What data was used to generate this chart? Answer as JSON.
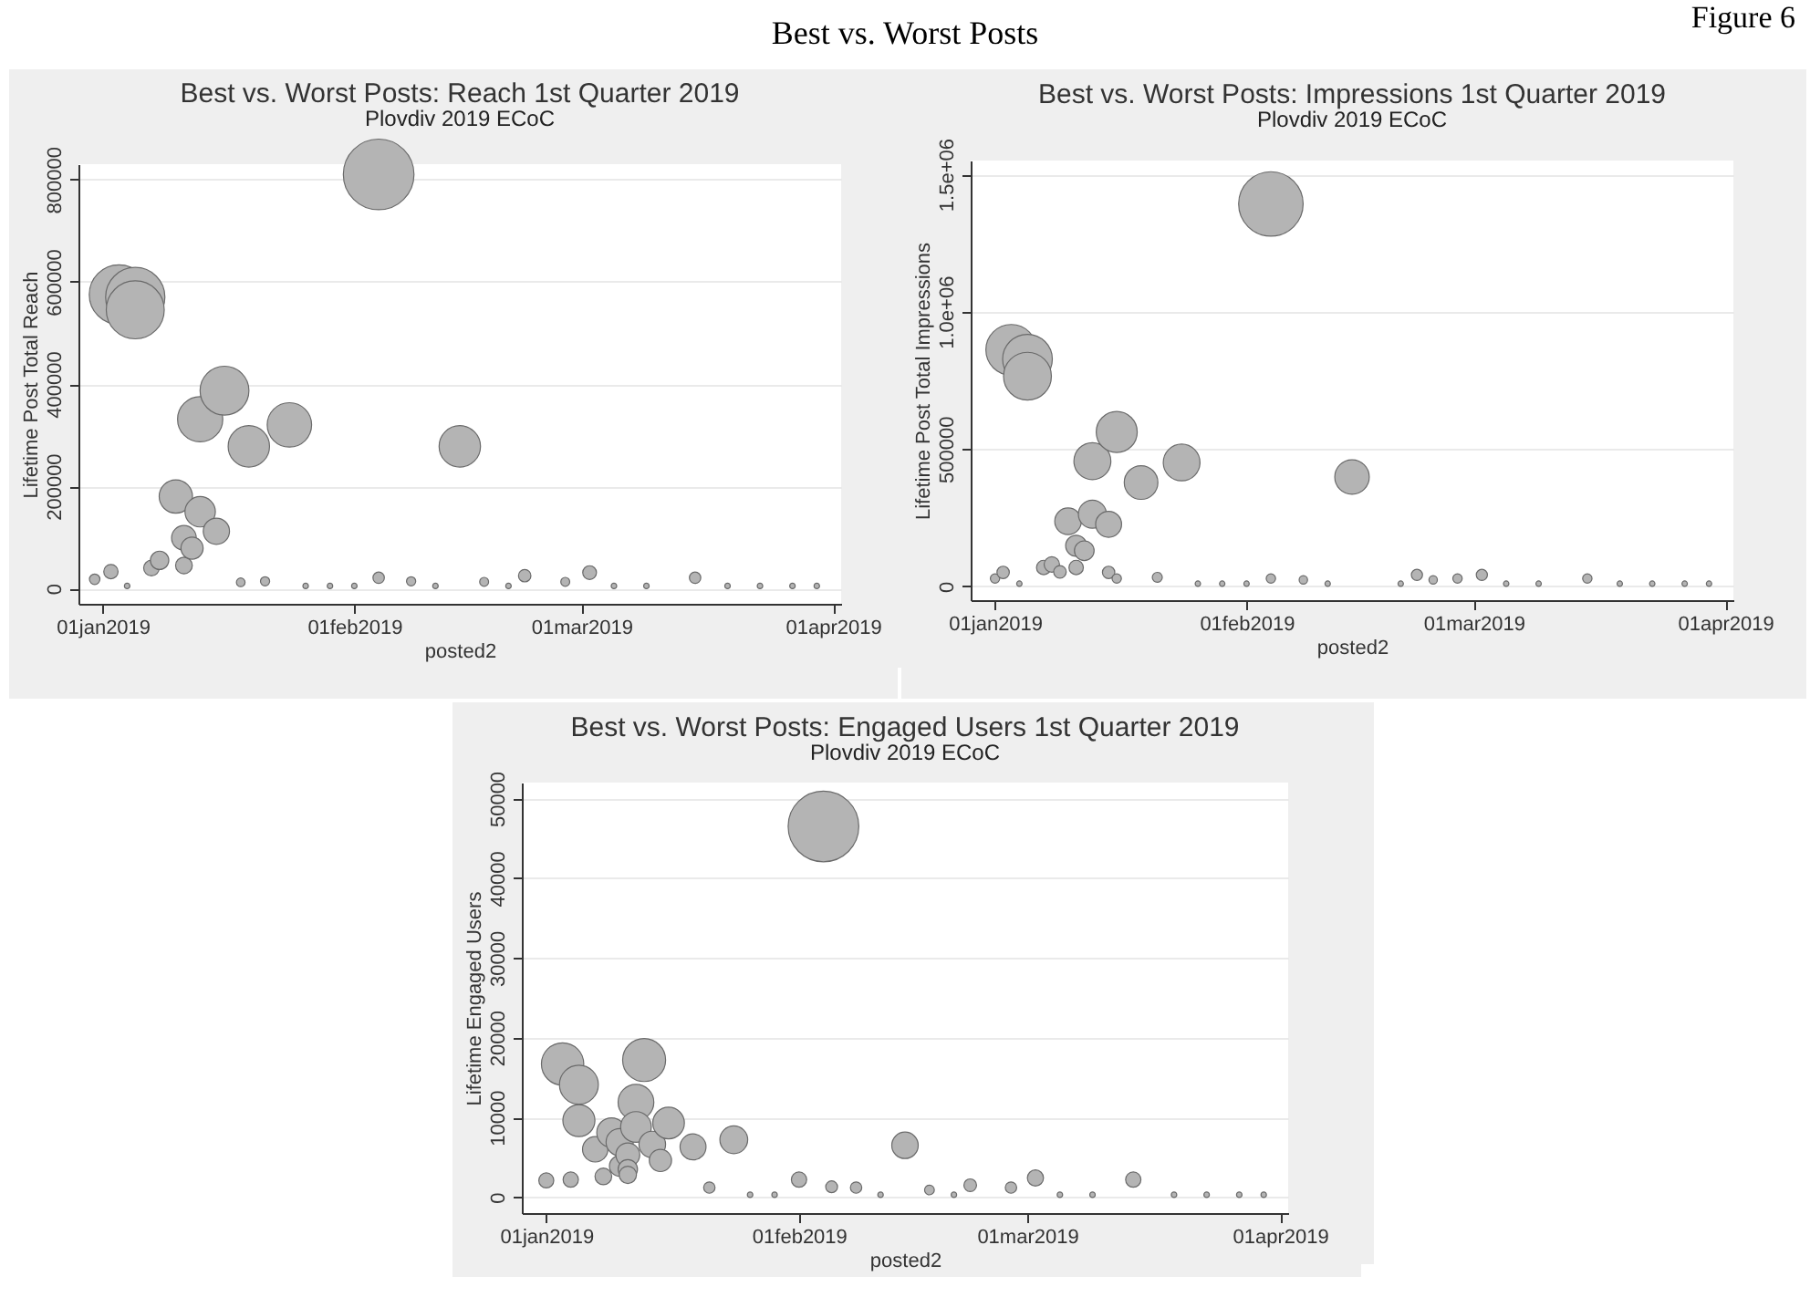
{
  "chart_data": [
    {
      "type": "bubble",
      "title": "Best vs. Worst Posts: Reach 1st Quarter 2019",
      "subtitle": "Plovdiv 2019 ECoC",
      "xlabel": "posted2",
      "ylabel": "Lifetime Post Total Reach",
      "annotations": [
        "Figure 6",
        "Best vs. Worst Posts"
      ],
      "x": [
        "2018-12-31",
        "2019-01-02",
        "2019-01-03",
        "2019-01-05",
        "2019-01-05",
        "2019-01-07",
        "2019-01-08",
        "2019-01-10",
        "2019-01-11",
        "2019-01-11",
        "2019-01-12",
        "2019-01-13",
        "2019-01-13",
        "2019-01-15",
        "2019-01-16",
        "2019-01-18",
        "2019-01-19",
        "2019-01-21",
        "2019-01-24",
        "2019-02-04",
        "2019-02-04",
        "2019-02-08",
        "2019-02-14",
        "2019-02-17",
        "2019-02-22",
        "2019-02-27",
        "2019-03-02",
        "2019-03-15",
        "2019-01-04",
        "2019-01-26",
        "2019-01-29",
        "2019-02-01",
        "2019-02-11",
        "2019-02-20",
        "2019-03-05",
        "2019-03-09",
        "2019-03-19",
        "2019-03-23",
        "2019-03-27",
        "2019-03-30"
      ],
      "series": [
        {
          "color": "#b4b4b4",
          "values": [
            18000,
            33000,
            575000,
            570000,
            545000,
            40000,
            55000,
            180000,
            99000,
            45000,
            79000,
            331000,
            150000,
            112000,
            387000,
            12000,
            278000,
            14000,
            320000,
            810000,
            21000,
            14000,
            278000,
            13000,
            25000,
            13000,
            31000,
            21000,
            5000,
            5000,
            5000,
            5000,
            5000,
            5000,
            5000,
            5000,
            5000,
            5000,
            5000,
            5000
          ],
          "sizes": [
            0.022,
            0.041,
            0.71,
            0.704,
            0.673,
            0.049,
            0.068,
            0.222,
            0.122,
            0.056,
            0.098,
            0.409,
            0.185,
            0.138,
            0.478,
            0.015,
            0.343,
            0.017,
            0.395,
            1,
            0.026,
            0.017,
            0.343,
            0.016,
            0.031,
            0.016,
            0.038,
            0.026,
            0.006,
            0.006,
            0.006,
            0.006,
            0.006,
            0.006,
            0.006,
            0.006,
            0.006,
            0.006,
            0.006,
            0.006
          ]
        }
      ],
      "xlim": [
        "2018-12-29",
        "2019-04-02"
      ],
      "xticks": [
        {
          "value": "2019-01-01",
          "label": "01jan2019"
        },
        {
          "value": "2019-02-01",
          "label": "01feb2019"
        },
        {
          "value": "2019-03-01",
          "label": "01mar2019"
        },
        {
          "value": "2019-04-01",
          "label": "01apr2019"
        }
      ],
      "ylim": [
        -30000,
        830000
      ],
      "yticks": [
        0,
        200000,
        400000,
        600000,
        800000
      ],
      "grid": "y",
      "marker": "circle"
    },
    {
      "type": "bubble",
      "title": "Best vs. Worst Posts: Impressions 1st Quarter 2019",
      "subtitle": "Plovdiv 2019 ECoC",
      "xlabel": "posted2",
      "ylabel": "Lifetime Post Total Impressions",
      "x": [
        "2019-01-01",
        "2019-01-02",
        "2019-01-03",
        "2019-01-05",
        "2019-01-05",
        "2019-01-07",
        "2019-01-08",
        "2019-01-09",
        "2019-01-10",
        "2019-01-11",
        "2019-01-11",
        "2019-01-12",
        "2019-01-13",
        "2019-01-13",
        "2019-01-15",
        "2019-01-15",
        "2019-01-16",
        "2019-01-16",
        "2019-01-19",
        "2019-01-21",
        "2019-01-24",
        "2019-02-04",
        "2019-02-04",
        "2019-02-08",
        "2019-02-14",
        "2019-02-22",
        "2019-02-24",
        "2019-02-27",
        "2019-03-02",
        "2019-03-15",
        "2019-01-04",
        "2019-01-26",
        "2019-01-29",
        "2019-02-01",
        "2019-02-11",
        "2019-02-20",
        "2019-03-05",
        "2019-03-09",
        "2019-03-19",
        "2019-03-23",
        "2019-03-27",
        "2019-03-30"
      ],
      "series": [
        {
          "color": "#b4b4b4",
          "values": [
            29000,
            51000,
            861000,
            827000,
            765000,
            69000,
            80000,
            53000,
            237000,
            148000,
            69000,
            130000,
            456000,
            263000,
            226000,
            51000,
            562000,
            29000,
            378000,
            33000,
            451000,
            1392000,
            29000,
            24000,
            398000,
            42000,
            24000,
            29000,
            42000,
            29000,
            10000,
            10000,
            10000,
            10000,
            10000,
            10000,
            10000,
            10000,
            10000,
            10000,
            10000,
            10000
          ],
          "sizes": [
            0.021,
            0.037,
            0.619,
            0.594,
            0.55,
            0.05,
            0.057,
            0.038,
            0.17,
            0.106,
            0.05,
            0.093,
            0.328,
            0.189,
            0.162,
            0.037,
            0.404,
            0.021,
            0.272,
            0.024,
            0.324,
            1,
            0.021,
            0.017,
            0.286,
            0.03,
            0.017,
            0.021,
            0.03,
            0.021,
            0.007,
            0.007,
            0.007,
            0.007,
            0.007,
            0.007,
            0.007,
            0.007,
            0.007,
            0.007,
            0.007,
            0.007
          ]
        }
      ],
      "xlim": [
        "2018-12-29",
        "2019-04-02"
      ],
      "xticks": [
        {
          "value": "2019-01-01",
          "label": "01jan2019"
        },
        {
          "value": "2019-02-01",
          "label": "01feb2019"
        },
        {
          "value": "2019-03-01",
          "label": "01mar2019"
        },
        {
          "value": "2019-04-01",
          "label": "01apr2019"
        }
      ],
      "ylim": [
        -50000,
        1550000
      ],
      "yticks": [
        0,
        500000,
        {
          "value": 1000000,
          "label": "1.0e+06"
        },
        {
          "value": 1500000,
          "label": "1.5e+06"
        }
      ],
      "grid": "y",
      "marker": "circle"
    },
    {
      "type": "bubble",
      "title": "Best vs. Worst Posts: Engaged Users 1st Quarter 2019",
      "subtitle": "Plovdiv 2019 ECoC",
      "xlabel": "posted2",
      "ylabel": "Lifetime Engaged Users",
      "x": [
        "2019-01-01",
        "2019-01-03",
        "2019-01-04",
        "2019-01-05",
        "2019-01-05",
        "2019-01-07",
        "2019-01-08",
        "2019-01-09",
        "2019-01-10",
        "2019-01-10",
        "2019-01-11",
        "2019-01-11",
        "2019-01-11",
        "2019-01-12",
        "2019-01-12",
        "2019-01-13",
        "2019-01-14",
        "2019-01-15",
        "2019-01-16",
        "2019-01-19",
        "2019-01-21",
        "2019-01-24",
        "2019-02-01",
        "2019-02-04",
        "2019-02-05",
        "2019-02-08",
        "2019-02-14",
        "2019-02-17",
        "2019-02-22",
        "2019-02-27",
        "2019-03-02",
        "2019-03-14",
        "2019-01-26",
        "2019-01-29",
        "2019-02-11",
        "2019-02-20",
        "2019-03-05",
        "2019-03-09",
        "2019-03-19",
        "2019-03-23",
        "2019-03-27",
        "2019-03-30"
      ],
      "series": [
        {
          "color": "#b4b4b4",
          "values": [
            2100,
            16700,
            2200,
            14100,
            9600,
            6000,
            2600,
            8100,
            6900,
            3900,
            5300,
            3500,
            2800,
            11900,
            8800,
            17200,
            6600,
            4600,
            9300,
            6300,
            1200,
            7200,
            2200,
            46500,
            1300,
            1200,
            6500,
            900,
            1500,
            1200,
            2400,
            2200,
            300,
            300,
            300,
            300,
            300,
            300,
            300,
            300,
            300,
            300
          ],
          "sizes": [
            0.045,
            0.359,
            0.047,
            0.303,
            0.206,
            0.129,
            0.056,
            0.174,
            0.148,
            0.084,
            0.114,
            0.075,
            0.06,
            0.256,
            0.189,
            0.37,
            0.142,
            0.099,
            0.2,
            0.135,
            0.026,
            0.155,
            0.047,
            1,
            0.028,
            0.026,
            0.14,
            0.019,
            0.032,
            0.026,
            0.052,
            0.047,
            0.006,
            0.006,
            0.006,
            0.006,
            0.006,
            0.006,
            0.006,
            0.006,
            0.006,
            0.006
          ]
        }
      ],
      "xlim": [
        "2018-12-29",
        "2019-04-02"
      ],
      "xticks": [
        {
          "value": "2019-01-01",
          "label": "01jan2019"
        },
        {
          "value": "2019-02-01",
          "label": "01feb2019"
        },
        {
          "value": "2019-03-01",
          "label": "01mar2019"
        },
        {
          "value": "2019-04-01",
          "label": "01apr2019"
        }
      ],
      "ylim": [
        -2000,
        52000
      ],
      "yticks": [
        0,
        10000,
        20000,
        30000,
        40000,
        50000
      ],
      "grid": "y",
      "marker": "circle"
    }
  ]
}
